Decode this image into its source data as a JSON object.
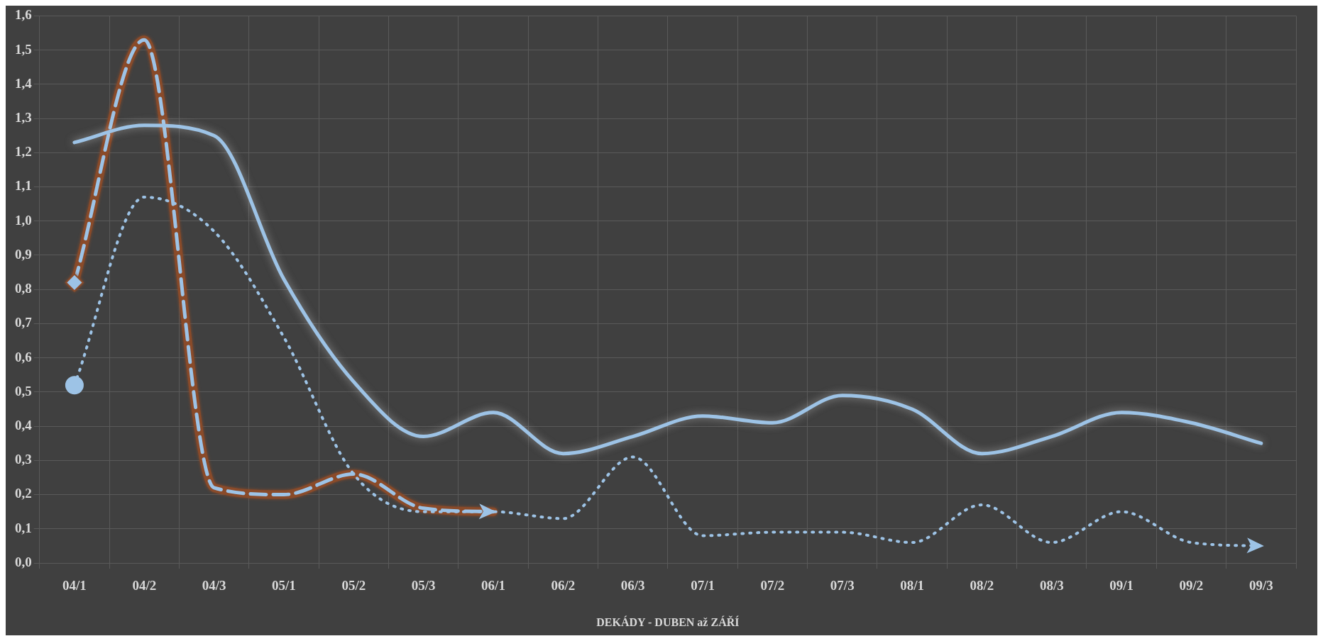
{
  "chart_data": {
    "type": "line",
    "xlabel": "DEKÁDY - DUBEN až ZÁŘÍ",
    "categories": [
      "04/1",
      "04/2",
      "04/3",
      "05/1",
      "05/2",
      "05/3",
      "06/1",
      "06/2",
      "06/3",
      "07/1",
      "07/2",
      "07/3",
      "08/1",
      "08/2",
      "08/3",
      "09/1",
      "09/2",
      "09/3"
    ],
    "series": [
      {
        "color": "#9dc3e6",
        "line_style": "solid",
        "values": [
          1.23,
          1.28,
          1.25,
          0.83,
          0.53,
          0.37,
          0.44,
          0.32,
          0.37,
          0.43,
          0.41,
          0.49,
          0.45,
          0.32,
          0.37,
          0.44,
          0.41,
          0.35
        ]
      },
      {
        "color": "#9dc3e6",
        "line_style": "dotted",
        "values": [
          0.52,
          1.07,
          0.97,
          0.66,
          0.26,
          0.15,
          0.15,
          0.13,
          0.31,
          0.08,
          0.09,
          0.09,
          0.06,
          0.17,
          0.06,
          0.15,
          0.06,
          0.05
        ]
      },
      {
        "color": "#9dc3e6",
        "line_style": "dashed",
        "values": [
          0.82,
          1.53,
          0.22,
          0.2,
          0.26,
          0.16,
          0.15,
          null,
          null,
          null,
          null,
          null,
          null,
          null,
          null,
          null,
          null,
          null
        ]
      }
    ],
    "ylim": [
      0,
      1.6
    ],
    "yticks": [
      {
        "value": 0,
        "label": "0,0"
      },
      {
        "value": 0.1,
        "label": "0,1"
      },
      {
        "value": 0.2,
        "label": "0,2"
      },
      {
        "value": 0.3,
        "label": "0,3"
      },
      {
        "value": 0.4,
        "label": "0,4"
      },
      {
        "value": 0.5,
        "label": "0,5"
      },
      {
        "value": 0.6,
        "label": "0,6"
      },
      {
        "value": 0.7,
        "label": "0,7"
      },
      {
        "value": 0.8,
        "label": "0,8"
      },
      {
        "value": 0.9,
        "label": "0,9"
      },
      {
        "value": 1,
        "label": "1,0"
      },
      {
        "value": 1.1,
        "label": "1,1"
      },
      {
        "value": 1.2,
        "label": "1,2"
      },
      {
        "value": 1.3,
        "label": "1,3"
      },
      {
        "value": 1.4,
        "label": "1,4"
      },
      {
        "value": 1.5,
        "label": "1,5"
      },
      {
        "value": 1.6,
        "label": "1,6"
      }
    ],
    "grid": true,
    "legend": false
  }
}
